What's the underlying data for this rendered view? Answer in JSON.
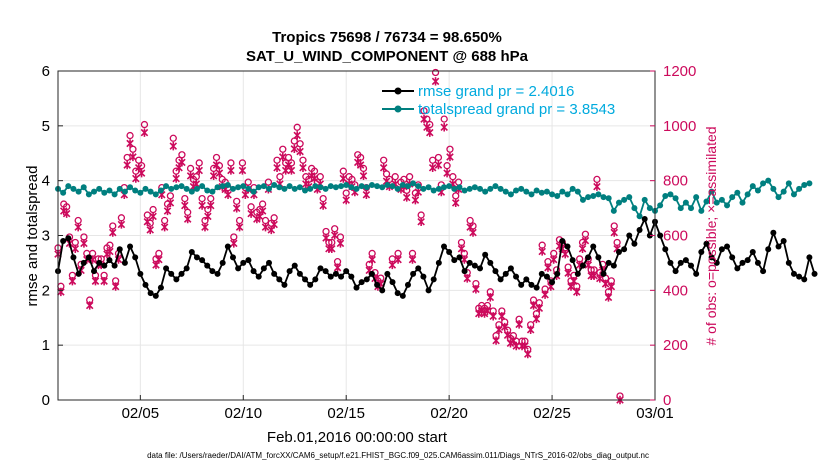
{
  "chart_data": {
    "type": "line",
    "title": "Tropics 75698 / 76734 = 98.650%",
    "subtitle": "SAT_U_WIND_COMPONENT @ 688 hPa",
    "xlabel": "Feb.01,2016 00:00:00 start",
    "ylabel": "rmse and totalspread",
    "ylabel_right": "# of obs: o=possible; ×=assimilated",
    "footnote": "data file: /Users/raeder/DAI/ATM_forcXX/CAM6_setup/f.e21.FHIST_BGC.f09_025.CAM6assim.011/Diags_NTrS_2016-02/obs_diag_output.nc",
    "xlim": [
      1,
      30
    ],
    "ylim": [
      0,
      6
    ],
    "ylim_right": [
      0,
      1200
    ],
    "x_ticks": [
      {
        "x": 5,
        "label": "02/05"
      },
      {
        "x": 10,
        "label": "02/10"
      },
      {
        "x": 15,
        "label": "02/15"
      },
      {
        "x": 20,
        "label": "02/20"
      },
      {
        "x": 25,
        "label": "02/25"
      },
      {
        "x": 30,
        "label": "03/01"
      }
    ],
    "y_ticks": [
      "0",
      "1",
      "2",
      "3",
      "4",
      "5",
      "6"
    ],
    "y_right_ticks": [
      "0",
      "200",
      "400",
      "600",
      "800",
      "1000",
      "1200"
    ],
    "legend": [
      "rmse grand pr = 2.4016",
      "totalspread grand pr = 3.8543"
    ],
    "legend_position": "top-right",
    "grid": true,
    "colors": {
      "rmse": "#000000",
      "spread": "#007f7f",
      "obs": "#cc0a5c",
      "legend_text": "#00aade"
    },
    "x_start": 1.0,
    "x_step": 0.25,
    "series": [
      {
        "name": "rmse",
        "axis": "left",
        "values": [
          2.35,
          2.9,
          2.95,
          2.6,
          2.3,
          2.5,
          2.6,
          2.35,
          2.5,
          2.45,
          2.55,
          2.45,
          2.75,
          2.5,
          2.8,
          2.6,
          2.3,
          2.1,
          1.95,
          1.9,
          2.05,
          2.4,
          2.3,
          2.2,
          2.3,
          2.4,
          2.7,
          2.6,
          2.55,
          2.45,
          2.35,
          2.3,
          2.5,
          2.8,
          2.6,
          2.4,
          2.5,
          2.55,
          2.35,
          2.25,
          2.4,
          2.5,
          2.3,
          2.2,
          2.1,
          2.35,
          2.45,
          2.3,
          2.2,
          2.1,
          2.2,
          2.4,
          2.35,
          2.25,
          2.3,
          2.25,
          2.35,
          2.25,
          2.05,
          2.15,
          2.2,
          2.3,
          2.1,
          2.0,
          2.3,
          2.15,
          1.95,
          1.9,
          2.1,
          2.3,
          2.4,
          2.25,
          2.0,
          2.2,
          2.5,
          2.8,
          2.7,
          2.55,
          2.6,
          2.35,
          2.5,
          2.45,
          2.4,
          2.65,
          2.5,
          2.35,
          2.2,
          2.3,
          2.4,
          2.25,
          2.1,
          2.2,
          2.1,
          2.05,
          2.3,
          2.25,
          2.15,
          2.3,
          2.9,
          2.8,
          2.55,
          2.3,
          2.45,
          2.6,
          2.8,
          2.6,
          2.3,
          2.5,
          2.45,
          2.7,
          2.75,
          3.0,
          2.85,
          3.1,
          3.3,
          3.0,
          3.25,
          3.0,
          2.75,
          2.5,
          2.35,
          2.5,
          2.55,
          2.45,
          2.3,
          2.7,
          2.85,
          2.6,
          2.5,
          2.75,
          2.8,
          2.6,
          2.4,
          2.5,
          2.55,
          2.7,
          2.5,
          2.35,
          2.75,
          3.05,
          2.8,
          2.9,
          2.5,
          2.3,
          2.25,
          2.2,
          2.6,
          2.3
        ]
      },
      {
        "name": "totalspread",
        "axis": "left",
        "values": [
          3.85,
          3.78,
          3.9,
          3.85,
          3.8,
          3.88,
          3.75,
          3.8,
          3.85,
          3.78,
          3.82,
          3.75,
          3.85,
          3.8,
          3.88,
          3.82,
          3.78,
          3.85,
          3.8,
          3.75,
          3.82,
          3.9,
          3.85,
          3.88,
          3.9,
          3.85,
          3.8,
          3.85,
          3.9,
          3.82,
          3.8,
          3.88,
          3.9,
          3.92,
          3.85,
          3.88,
          3.9,
          3.85,
          3.8,
          3.88,
          3.9,
          3.85,
          3.92,
          3.88,
          3.85,
          3.9,
          3.85,
          3.88,
          3.82,
          3.85,
          3.9,
          3.88,
          3.85,
          3.9,
          3.88,
          3.9,
          3.92,
          3.88,
          3.85,
          3.9,
          3.88,
          3.92,
          3.9,
          3.88,
          3.92,
          3.9,
          3.85,
          3.92,
          3.9,
          3.95,
          3.9,
          3.85,
          3.88,
          3.82,
          3.85,
          3.88,
          3.9,
          3.85,
          3.88,
          3.82,
          3.85,
          3.88,
          3.85,
          3.8,
          3.85,
          3.9,
          3.85,
          3.8,
          3.75,
          3.82,
          3.85,
          3.8,
          3.75,
          3.82,
          3.78,
          3.8,
          3.75,
          3.72,
          3.8,
          3.75,
          3.85,
          3.8,
          3.65,
          3.7,
          3.72,
          3.75,
          3.7,
          3.68,
          3.45,
          3.6,
          3.65,
          3.7,
          3.5,
          3.35,
          3.65,
          3.5,
          3.45,
          3.55,
          3.72,
          3.75,
          3.68,
          3.5,
          3.6,
          3.5,
          3.7,
          3.45,
          3.62,
          3.8,
          3.6,
          3.65,
          3.55,
          3.7,
          3.78,
          3.6,
          3.75,
          3.9,
          3.82,
          3.95,
          4.0,
          3.85,
          3.7,
          3.8,
          3.95,
          3.75,
          3.85,
          3.92,
          3.95
        ]
      },
      {
        "name": "obs_count",
        "axis": "right",
        "values": [
          540,
          400,
          700,
          690,
          580,
          440,
          560,
          640,
          480,
          580,
          520,
          350,
          520,
          440,
          500,
          500,
          440,
          540,
          550,
          620,
          420,
          520,
          650,
          760,
          870,
          950,
          900,
          820,
          860,
          840,
          990,
          660,
          630,
          680,
          500,
          520,
          760,
          640,
          700,
          730,
          940,
          820,
          860,
          880,
          720,
          670,
          830,
          790,
          800,
          850,
          720,
          640,
          680,
          720,
          830,
          870,
          840,
          790,
          780,
          760,
          850,
          580,
          710,
          640,
          850,
          760,
          780,
          690,
          760,
          670,
          680,
          700,
          640,
          780,
          630,
          650,
          860,
          800,
          900,
          850,
          870,
          850,
          930,
          980,
          920,
          860,
          800,
          790,
          830,
          820,
          780,
          800,
          720,
          600,
          560,
          560,
          610,
          490,
          580,
          820,
          740,
          800,
          790,
          770,
          880,
          870,
          830,
          760,
          480,
          520,
          450,
          420,
          430,
          860,
          810,
          790,
          500,
          800,
          520,
          780,
          790,
          750,
          800,
          520,
          740,
          770,
          660,
          1040,
          1010,
          990,
          860,
          1180,
          870,
          770,
          1010,
          840,
          900,
          800,
          730,
          780,
          560,
          520,
          450,
          640,
          620,
          410,
          320,
          330,
          320,
          330,
          380,
          310,
          220,
          260,
          310,
          270,
          240,
          210,
          220,
          200,
          280,
          200,
          200,
          170,
          260,
          350,
          300,
          340,
          550,
          390,
          490,
          420,
          520,
          460,
          570,
          560,
          540,
          470,
          420,
          440,
          400,
          500,
          560,
          590,
          500,
          460,
          460,
          790,
          450,
          480,
          430,
          380,
          420,
          620,
          560,
          0
        ],
        "x_start": 1.0,
        "x_step": 0.14
      }
    ]
  }
}
